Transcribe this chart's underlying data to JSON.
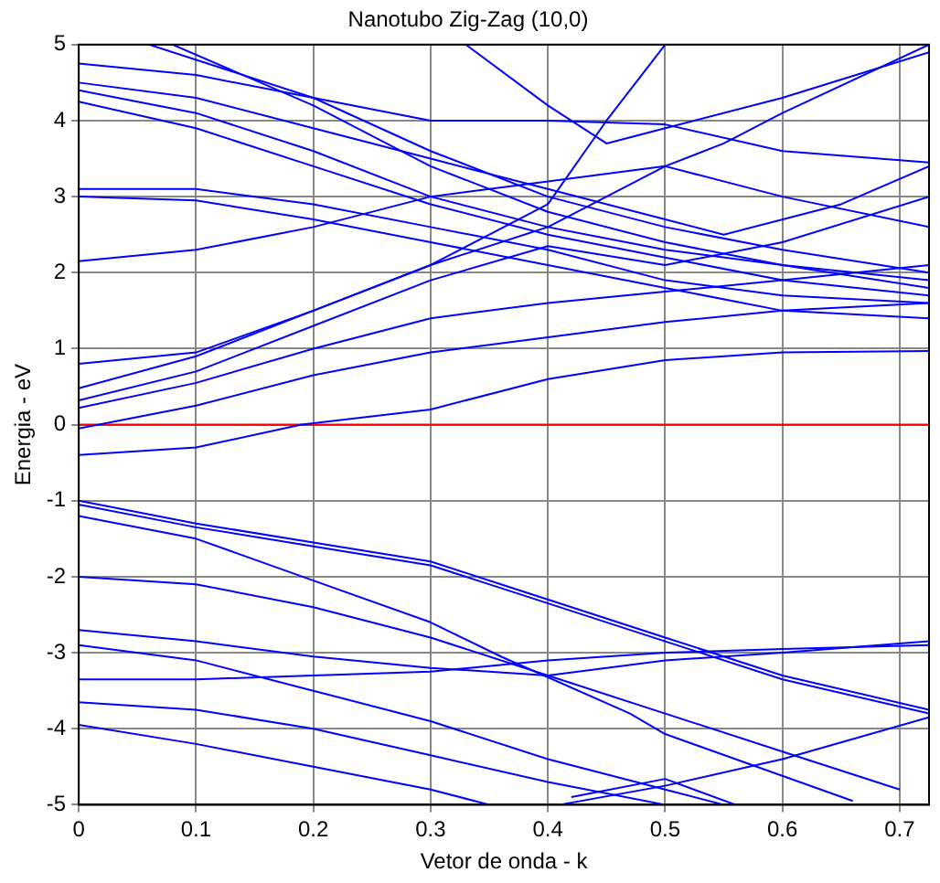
{
  "chart_data": {
    "type": "line",
    "title": "Nanotubo Zig-Zag (10,0)",
    "xlabel": "Vetor de onda - k",
    "ylabel": "Energia - eV",
    "xlim": [
      0,
      0.725
    ],
    "ylim": [
      -5,
      5
    ],
    "xticks": [
      0,
      0.1,
      0.2,
      0.3,
      0.4,
      0.5,
      0.6,
      0.7
    ],
    "yticks": [
      -5,
      -4,
      -3,
      -2,
      -1,
      0,
      1,
      2,
      3,
      4,
      5
    ],
    "grid": true,
    "legend": false,
    "marker": "none",
    "line_style": "solid",
    "ref_lines": [
      {
        "axis": "y",
        "value": 0,
        "color": "#ff0000"
      }
    ],
    "series": [
      {
        "color": "#0000ff",
        "x": [
          0,
          0.1,
          0.2,
          0.3,
          0.4,
          0.5,
          0.6,
          0.725
        ],
        "values": [
          4.75,
          4.6,
          4.3,
          4.0,
          4.0,
          3.95,
          3.6,
          3.45
        ]
      },
      {
        "color": "#0000ff",
        "x": [
          0,
          0.1,
          0.2,
          0.3,
          0.4,
          0.5,
          0.55,
          0.65,
          0.725
        ],
        "values": [
          4.5,
          4.3,
          3.9,
          3.5,
          3.1,
          2.7,
          2.5,
          2.9,
          3.4
        ]
      },
      {
        "color": "#0000ff",
        "x": [
          0,
          0.1,
          0.2,
          0.3,
          0.4,
          0.5,
          0.6,
          0.725
        ],
        "values": [
          4.4,
          4.1,
          3.6,
          3.0,
          2.6,
          2.3,
          2.1,
          1.9
        ]
      },
      {
        "color": "#0000ff",
        "x": [
          0,
          0.1,
          0.2,
          0.3,
          0.4,
          0.5,
          0.6,
          0.725
        ],
        "values": [
          4.25,
          3.9,
          3.4,
          2.9,
          2.5,
          2.2,
          1.9,
          1.7
        ]
      },
      {
        "color": "#0000ff",
        "x": [
          0,
          0.1,
          0.2,
          0.3,
          0.4,
          0.5,
          0.6,
          0.725
        ],
        "values": [
          3.1,
          3.1,
          2.9,
          2.6,
          2.3,
          1.9,
          1.7,
          1.6
        ]
      },
      {
        "color": "#0000ff",
        "x": [
          0,
          0.1,
          0.2,
          0.3,
          0.4,
          0.5,
          0.6,
          0.725
        ],
        "values": [
          3.0,
          2.95,
          2.7,
          2.4,
          2.1,
          1.8,
          1.5,
          1.4
        ]
      },
      {
        "color": "#0000ff",
        "x": [
          0,
          0.1,
          0.2,
          0.3,
          0.4,
          0.5,
          0.6,
          0.725
        ],
        "values": [
          2.15,
          2.3,
          2.6,
          3.0,
          3.2,
          3.4,
          3.0,
          2.6
        ]
      },
      {
        "color": "#0000ff",
        "x": [
          0.06,
          0.2,
          0.3,
          0.4,
          0.5,
          0.6,
          0.725
        ],
        "values": [
          5.0,
          4.3,
          3.6,
          3.0,
          2.6,
          2.3,
          2.0
        ]
      },
      {
        "color": "#0000ff",
        "x": [
          0.08,
          0.2,
          0.3,
          0.4,
          0.5,
          0.6,
          0.725
        ],
        "values": [
          5.0,
          4.2,
          3.4,
          2.8,
          2.4,
          2.1,
          1.8
        ]
      },
      {
        "color": "#0000ff",
        "x": [
          0,
          0.1,
          0.2,
          0.3,
          0.4,
          0.5,
          0.55,
          0.6,
          0.725
        ],
        "values": [
          0.8,
          0.95,
          1.5,
          2.1,
          2.6,
          3.4,
          3.7,
          4.1,
          5.0
        ]
      },
      {
        "color": "#0000ff",
        "x": [
          0,
          0.1,
          0.2,
          0.3,
          0.4,
          0.45,
          0.5
        ],
        "values": [
          0.48,
          0.9,
          1.5,
          2.1,
          2.9,
          4.0,
          5.0
        ]
      },
      {
        "color": "#0000ff",
        "x": [
          0,
          0.1,
          0.2,
          0.3,
          0.4,
          0.5,
          0.6,
          0.725
        ],
        "values": [
          0.32,
          0.7,
          1.3,
          1.9,
          2.35,
          2.1,
          2.4,
          3.0
        ]
      },
      {
        "color": "#0000ff",
        "x": [
          0,
          0.1,
          0.2,
          0.3,
          0.4,
          0.5,
          0.6,
          0.725
        ],
        "values": [
          0.22,
          0.55,
          1.0,
          1.4,
          1.6,
          1.75,
          1.9,
          2.1
        ]
      },
      {
        "color": "#0000ff",
        "x": [
          0,
          0.1,
          0.2,
          0.3,
          0.4,
          0.5,
          0.6,
          0.725
        ],
        "values": [
          -0.05,
          0.25,
          0.65,
          0.95,
          1.15,
          1.35,
          1.5,
          1.6
        ]
      },
      {
        "color": "#0000ff",
        "x": [
          0,
          0.1,
          0.19,
          0.3,
          0.4,
          0.5,
          0.6,
          0.725
        ],
        "values": [
          -0.4,
          -0.3,
          0.0,
          0.2,
          0.6,
          0.85,
          0.95,
          0.97
        ]
      },
      {
        "color": "#0000ff",
        "x": [
          0.33,
          0.4,
          0.45,
          0.5,
          0.6,
          0.725
        ],
        "values": [
          5.0,
          4.2,
          3.7,
          3.9,
          4.3,
          4.9
        ]
      },
      {
        "color": "#0000ff",
        "x": [
          0,
          0.1,
          0.2,
          0.3,
          0.36,
          0.5,
          0.6,
          0.725
        ],
        "values": [
          -1.0,
          -1.3,
          -1.55,
          -1.8,
          -2.1,
          -2.8,
          -3.3,
          -3.75
        ]
      },
      {
        "color": "#0000ff",
        "x": [
          0,
          0.1,
          0.2,
          0.3,
          0.36,
          0.5,
          0.6,
          0.725
        ],
        "values": [
          -1.05,
          -1.35,
          -1.6,
          -1.85,
          -2.15,
          -2.85,
          -3.35,
          -3.8
        ]
      },
      {
        "color": "#0000ff",
        "x": [
          0,
          0.1,
          0.2,
          0.3,
          0.36,
          0.47,
          0.5,
          0.66
        ],
        "values": [
          -1.2,
          -1.5,
          -2.05,
          -2.6,
          -3.05,
          -3.8,
          -4.07,
          -4.95
        ]
      },
      {
        "color": "#0000ff",
        "x": [
          0,
          0.1,
          0.2,
          0.3,
          0.4,
          0.5,
          0.6,
          0.7
        ],
        "values": [
          -2.0,
          -2.1,
          -2.4,
          -2.8,
          -3.3,
          -3.8,
          -4.3,
          -4.8
        ]
      },
      {
        "color": "#0000ff",
        "x": [
          0,
          0.1,
          0.2,
          0.3,
          0.4,
          0.5,
          0.6,
          0.725
        ],
        "values": [
          -2.7,
          -2.85,
          -3.05,
          -3.2,
          -3.3,
          -3.1,
          -3.0,
          -2.85
        ]
      },
      {
        "color": "#0000ff",
        "x": [
          0,
          0.1,
          0.2,
          0.3,
          0.4,
          0.5,
          0.6,
          0.725
        ],
        "values": [
          -3.35,
          -3.35,
          -3.3,
          -3.25,
          -3.1,
          -3.0,
          -2.95,
          -2.9
        ]
      },
      {
        "color": "#0000ff",
        "x": [
          0,
          0.1,
          0.2,
          0.3,
          0.4,
          0.5,
          0.55
        ],
        "values": [
          -2.9,
          -3.1,
          -3.5,
          -3.9,
          -4.4,
          -4.8,
          -5.0
        ]
      },
      {
        "color": "#0000ff",
        "x": [
          0,
          0.1,
          0.2,
          0.3,
          0.4,
          0.5
        ],
        "values": [
          -3.65,
          -3.75,
          -4.0,
          -4.35,
          -4.7,
          -5.0
        ]
      },
      {
        "color": "#0000ff",
        "x": [
          0,
          0.1,
          0.2,
          0.3,
          0.35
        ],
        "values": [
          -3.95,
          -4.2,
          -4.5,
          -4.8,
          -5.0
        ]
      },
      {
        "color": "#0000ff",
        "x": [
          0.41,
          0.5,
          0.6,
          0.725
        ],
        "values": [
          -5.0,
          -4.75,
          -4.4,
          -3.85
        ]
      },
      {
        "color": "#0000ff",
        "x": [
          0.42,
          0.5,
          0.56
        ],
        "values": [
          -4.9,
          -4.66,
          -5.0
        ]
      }
    ]
  }
}
